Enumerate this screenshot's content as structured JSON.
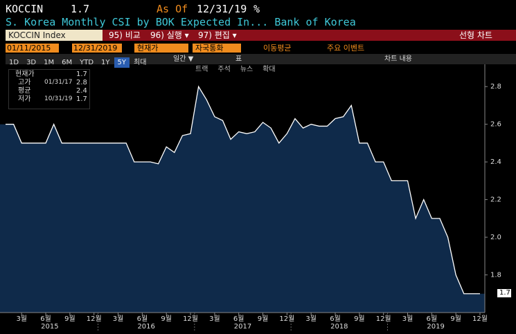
{
  "header": {
    "ticker": "KOCCIN",
    "value": "1.7",
    "as_of_label": "As Of",
    "as_of_date": "12/31/19",
    "unit": "%",
    "description": "S. Korea Monthly CSI by BOK Expected In... Bank of Korea"
  },
  "toolbar": {
    "security": "KOCCIN Index",
    "compare": "95) 비교",
    "actions": "96) 실행 ▾",
    "edit": "97) 편집 ▾",
    "chart_type": "선형 차트"
  },
  "settings": {
    "start": "01/11/2015",
    "end": "12/31/2019",
    "field": "현재가",
    "currency": "자국통화",
    "moving_avg": "이동평균",
    "events": "주요 이벤트"
  },
  "ranges": [
    "1D",
    "3D",
    "1M",
    "6M",
    "YTD",
    "1Y",
    "5Y",
    "최대"
  ],
  "period": "일간 ▼",
  "table": "표",
  "chart_content": "차트 내용",
  "tools": [
    "트랙",
    "주석",
    "뉴스",
    "확대"
  ],
  "legend": {
    "current": {
      "label": "현재가",
      "value": "1.7"
    },
    "high": {
      "label": "고가",
      "date": "01/31/17",
      "value": "2.8"
    },
    "average": {
      "label": "평균",
      "value": "2.4"
    },
    "low": {
      "label": "저가",
      "date": "10/31/19",
      "value": "1.7"
    }
  },
  "chart_data": {
    "type": "area",
    "color": "#ffffff",
    "fill": "#0f2a4a",
    "categories": [
      null,
      null,
      "3월",
      null,
      null,
      "6월",
      null,
      null,
      "9월",
      null,
      null,
      "12월",
      null,
      null,
      "3월",
      null,
      null,
      "6월",
      null,
      null,
      "9월",
      null,
      null,
      "12월",
      null,
      null,
      "3월",
      null,
      null,
      "6월",
      null,
      null,
      "9월",
      null,
      null,
      "12월",
      null,
      null,
      "3월",
      null,
      null,
      "6월",
      null,
      null,
      "9월",
      null,
      null,
      "12월",
      null,
      null,
      "3월",
      null,
      null,
      "6월",
      null,
      null,
      "9월",
      null,
      null,
      "12월"
    ],
    "years": [
      "2015",
      "2016",
      "2017",
      "2018",
      "2019"
    ],
    "values": [
      2.6,
      2.6,
      2.5,
      2.5,
      2.5,
      2.5,
      2.6,
      2.5,
      2.5,
      2.5,
      2.5,
      2.5,
      2.5,
      2.5,
      2.5,
      2.5,
      2.4,
      2.4,
      2.4,
      2.39,
      2.48,
      2.45,
      2.54,
      2.55,
      2.8,
      2.73,
      2.64,
      2.62,
      2.52,
      2.56,
      2.55,
      2.56,
      2.61,
      2.58,
      2.5,
      2.55,
      2.63,
      2.58,
      2.6,
      2.59,
      2.59,
      2.63,
      2.64,
      2.7,
      2.5,
      2.5,
      2.4,
      2.4,
      2.3,
      2.3,
      2.3,
      2.1,
      2.2,
      2.1,
      2.1,
      2.0,
      1.8,
      1.7,
      1.7,
      1.7
    ],
    "ylim": [
      1.6,
      2.9
    ],
    "yticks": [
      1.8,
      {
        "value": 2,
        "label": "2.0"
      },
      2.2,
      2.4,
      2.6,
      2.8
    ]
  }
}
